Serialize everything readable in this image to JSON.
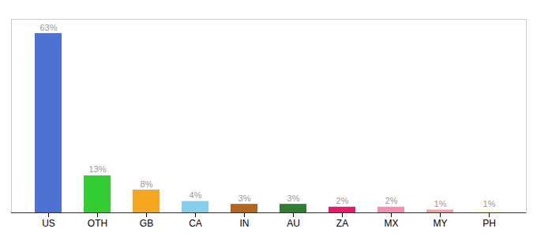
{
  "chart_data": {
    "type": "bar",
    "categories": [
      "US",
      "OTH",
      "GB",
      "CA",
      "IN",
      "AU",
      "ZA",
      "MX",
      "MY",
      "PH"
    ],
    "values": [
      63,
      13,
      8,
      4,
      3,
      3,
      2,
      2,
      1,
      1
    ],
    "value_labels": [
      "63%",
      "13%",
      "8%",
      "4%",
      "3%",
      "3%",
      "2%",
      "2%",
      "1%",
      "1%"
    ],
    "colors": [
      "#4d72d4",
      "#33cc33",
      "#f5a623",
      "#87ceeb",
      "#b5651d",
      "#2e7d32",
      "#e8186c",
      "#f48fb1",
      "#f4a0a0",
      "#fdfde0"
    ],
    "ylim": [
      0,
      68
    ],
    "data_labels": true,
    "tick_labels": "x",
    "grid": false
  }
}
